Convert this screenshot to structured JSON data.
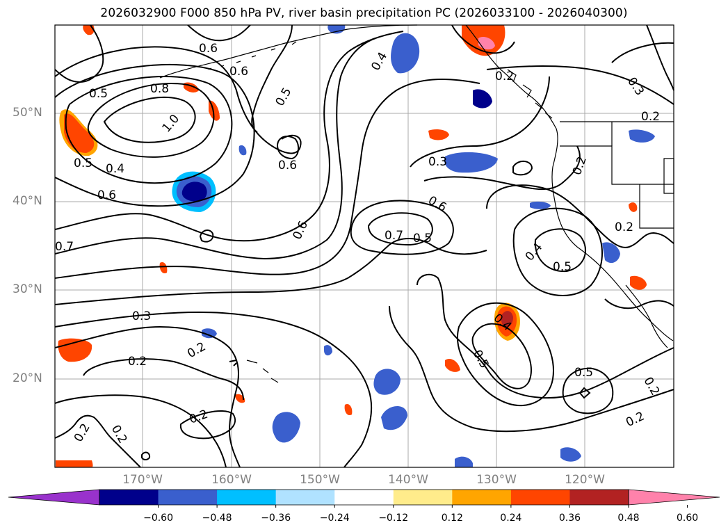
{
  "title": "2026032900 F000 850 hPa PV, river basin precipitation PC (2026033100 - 2026040300)",
  "lat_labels": [
    "50°N",
    "40°N",
    "30°N",
    "20°N"
  ],
  "lon_labels": [
    "170°W",
    "160°W",
    "150°W",
    "140°W",
    "130°W",
    "120°W"
  ],
  "colorbar": {
    "tick_labels": [
      "−0.60",
      "−0.48",
      "−0.36",
      "−0.24",
      "−0.12",
      "0.12",
      "0.24",
      "0.36",
      "0.48",
      "0.60"
    ],
    "colors": [
      "#9932cc",
      "#00008b",
      "#3a5fcd",
      "#00bfff",
      "#b0e2ff",
      "#ffffff",
      "#ffec8b",
      "#ffa500",
      "#ff4500",
      "#b22222",
      "#ff82ab"
    ]
  },
  "contour_labels": [
    "0.6",
    "0.6",
    "0.5",
    "0.8",
    "1.0",
    "0.5",
    "0.4",
    "0.6",
    "0.5",
    "0.6",
    "0.4",
    "0.3",
    "0.2",
    "0.2",
    "0.3",
    "0.6",
    "0.7",
    "0.5",
    "0.6",
    "0.7",
    "0.4",
    "0.5",
    "0.2",
    "0.3",
    "0.2",
    "0.2",
    "0.4",
    "0.5",
    "0.5",
    "0.2",
    "0.2",
    "0.2",
    "0.2",
    "0.2",
    "0.2"
  ]
}
